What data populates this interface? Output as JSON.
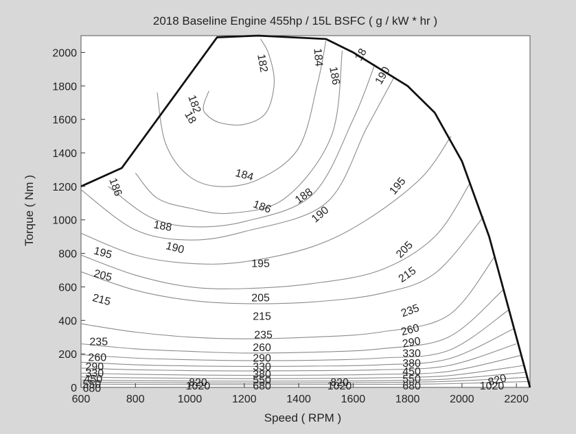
{
  "chart_data": {
    "type": "contour",
    "title": "2018 Baseline Engine 455hp / 15L  BSFC ( g / kW * hr )",
    "xlabel": "Speed ( RPM )",
    "ylabel": "Torque ( Nm )",
    "xlim": [
      600,
      2250
    ],
    "ylim": [
      0,
      2100
    ],
    "xticks": [
      "600",
      "800",
      "1000",
      "1200",
      "1400",
      "1600",
      "1800",
      "2000",
      "2200"
    ],
    "yticks": [
      "0",
      "200",
      "400",
      "600",
      "800",
      "1000",
      "1200",
      "1400",
      "1600",
      "1800",
      "2000"
    ],
    "grid": false,
    "envelope": {
      "x": [
        600,
        750,
        1100,
        1250,
        1500,
        1600,
        1700,
        1800,
        1900,
        2000,
        2100,
        2250
      ],
      "y": [
        1200,
        1310,
        2090,
        2100,
        2080,
        2000,
        1900,
        1800,
        1640,
        1350,
        900,
        0
      ]
    },
    "contours": [
      {
        "level": 182,
        "x": [
          1070,
          1050,
          1060,
          1110,
          1200,
          1280,
          1310,
          1290,
          1260
        ],
        "y": [
          1770,
          1680,
          1630,
          1580,
          1570,
          1640,
          1820,
          1990,
          2080
        ]
      },
      {
        "level": 184,
        "x": [
          880,
          910,
          990,
          1100,
          1250,
          1400,
          1470,
          1500
        ],
        "y": [
          1760,
          1460,
          1270,
          1200,
          1240,
          1430,
          1820,
          2070
        ]
      },
      {
        "level": 186,
        "x": [
          800,
          880,
          1000,
          1150,
          1350,
          1520,
          1560
        ],
        "y": [
          1280,
          1130,
          1070,
          1040,
          1130,
          1500,
          2010
        ]
      },
      {
        "level": 188,
        "x": [
          700,
          850,
          1000,
          1200,
          1450,
          1600,
          1680
        ],
        "y": [
          1200,
          1020,
          960,
          990,
          1150,
          1600,
          1930
        ]
      },
      {
        "level": 190,
        "x": [
          600,
          800,
          1000,
          1200,
          1500,
          1650,
          1750
        ],
        "y": [
          1180,
          940,
          880,
          930,
          1100,
          1550,
          1850
        ]
      },
      {
        "level": 195,
        "x": [
          600,
          800,
          1000,
          1200,
          1450,
          1650,
          1850,
          1960
        ],
        "y": [
          920,
          790,
          740,
          750,
          840,
          1000,
          1250,
          1500
        ]
      },
      {
        "level": 205,
        "x": [
          600,
          800,
          1000,
          1200,
          1450,
          1700,
          1900,
          2030
        ],
        "y": [
          790,
          670,
          600,
          590,
          620,
          700,
          900,
          1220
        ]
      },
      {
        "level": 215,
        "x": [
          600,
          800,
          1000,
          1200,
          1450,
          1700,
          1900,
          2080
        ],
        "y": [
          690,
          580,
          520,
          500,
          510,
          560,
          680,
          1020
        ]
      },
      {
        "level": 235,
        "x": [
          600,
          800,
          1000,
          1200,
          1450,
          1700,
          1950,
          2120
        ],
        "y": [
          380,
          330,
          300,
          290,
          300,
          330,
          430,
          780
        ]
      },
      {
        "level": 260,
        "x": [
          600,
          800,
          1000,
          1200,
          1450,
          1700,
          1950,
          2150
        ],
        "y": [
          260,
          230,
          215,
          205,
          210,
          230,
          300,
          580
        ]
      },
      {
        "level": 290,
        "x": [
          600,
          800,
          1000,
          1200,
          1450,
          1700,
          1950,
          2170
        ],
        "y": [
          195,
          175,
          165,
          160,
          162,
          175,
          220,
          460
        ]
      },
      {
        "level": 330,
        "x": [
          600,
          800,
          1000,
          1200,
          1450,
          1700,
          1950,
          2190
        ],
        "y": [
          150,
          135,
          128,
          125,
          127,
          135,
          170,
          350
        ]
      },
      {
        "level": 380,
        "x": [
          600,
          800,
          1000,
          1200,
          1450,
          1700,
          1950,
          2200
        ],
        "y": [
          115,
          105,
          100,
          98,
          100,
          105,
          130,
          260
        ]
      },
      {
        "level": 450,
        "x": [
          600,
          800,
          1000,
          1200,
          1450,
          1700,
          1950,
          2215
        ],
        "y": [
          85,
          78,
          74,
          72,
          73,
          78,
          95,
          190
        ]
      },
      {
        "level": 550,
        "x": [
          600,
          800,
          1000,
          1200,
          1450,
          1700,
          1950,
          2225
        ],
        "y": [
          62,
          57,
          54,
          52,
          53,
          57,
          70,
          130
        ]
      },
      {
        "level": 680,
        "x": [
          600,
          800,
          1000,
          1200,
          1450,
          1700,
          1950,
          2235
        ],
        "y": [
          44,
          40,
          38,
          37,
          38,
          40,
          50,
          90
        ]
      },
      {
        "level": 820,
        "x": [
          600,
          800,
          1000,
          1200,
          1450,
          1700,
          1950,
          2240
        ],
        "y": [
          32,
          29,
          27,
          26,
          27,
          29,
          36,
          60
        ]
      },
      {
        "level": 1020,
        "x": [
          600,
          800,
          1000,
          1200,
          1450,
          1700,
          1950,
          2245
        ],
        "y": [
          20,
          18,
          17,
          16,
          17,
          18,
          22,
          35
        ]
      }
    ],
    "contour_labels": [
      {
        "text": "182",
        "x": 1265,
        "y": 1935,
        "angle": 80
      },
      {
        "text": "184",
        "x": 1470,
        "y": 1970,
        "angle": 85
      },
      {
        "text": "186",
        "x": 1530,
        "y": 1860,
        "angle": 80
      },
      {
        "text": "18",
        "x": 1630,
        "y": 1985,
        "angle": -60
      },
      {
        "text": "190",
        "x": 1710,
        "y": 1860,
        "angle": -60
      },
      {
        "text": "182",
        "x": 1015,
        "y": 1690,
        "angle": 70
      },
      {
        "text": "18",
        "x": 1000,
        "y": 1610,
        "angle": 60
      },
      {
        "text": "186",
        "x": 725,
        "y": 1195,
        "angle": 70
      },
      {
        "text": "184",
        "x": 1200,
        "y": 1265,
        "angle": 15
      },
      {
        "text": "186",
        "x": 1265,
        "y": 1075,
        "angle": 20
      },
      {
        "text": "188",
        "x": 1420,
        "y": 1140,
        "angle": -35
      },
      {
        "text": "190",
        "x": 1480,
        "y": 1030,
        "angle": -40
      },
      {
        "text": "195",
        "x": 1765,
        "y": 1200,
        "angle": -50
      },
      {
        "text": "188",
        "x": 900,
        "y": 960,
        "angle": 10
      },
      {
        "text": "190",
        "x": 945,
        "y": 830,
        "angle": 15
      },
      {
        "text": "195",
        "x": 680,
        "y": 800,
        "angle": 15
      },
      {
        "text": "195",
        "x": 1260,
        "y": 735,
        "angle": 0
      },
      {
        "text": "205",
        "x": 1790,
        "y": 820,
        "angle": -45
      },
      {
        "text": "205",
        "x": 680,
        "y": 665,
        "angle": 15
      },
      {
        "text": "215",
        "x": 1800,
        "y": 670,
        "angle": -35
      },
      {
        "text": "205",
        "x": 1260,
        "y": 530,
        "angle": 0
      },
      {
        "text": "215",
        "x": 675,
        "y": 520,
        "angle": 15
      },
      {
        "text": "235",
        "x": 1810,
        "y": 455,
        "angle": -20
      },
      {
        "text": "215",
        "x": 1265,
        "y": 420,
        "angle": 0
      },
      {
        "text": "260",
        "x": 1810,
        "y": 340,
        "angle": -15
      },
      {
        "text": "235",
        "x": 1270,
        "y": 310,
        "angle": 0
      },
      {
        "text": "290",
        "x": 1815,
        "y": 265,
        "angle": -10
      },
      {
        "text": "235",
        "x": 665,
        "y": 270,
        "angle": 0
      },
      {
        "text": "260",
        "x": 1265,
        "y": 235,
        "angle": 0
      },
      {
        "text": "330",
        "x": 1815,
        "y": 200,
        "angle": 0
      },
      {
        "text": "260",
        "x": 660,
        "y": 175,
        "angle": 0
      },
      {
        "text": "290",
        "x": 1265,
        "y": 170,
        "angle": 0
      },
      {
        "text": "380",
        "x": 1815,
        "y": 140,
        "angle": 0
      },
      {
        "text": "290",
        "x": 650,
        "y": 120,
        "angle": 0
      },
      {
        "text": "330",
        "x": 1265,
        "y": 120,
        "angle": 0
      },
      {
        "text": "450",
        "x": 1815,
        "y": 90,
        "angle": 0
      },
      {
        "text": "330",
        "x": 650,
        "y": 80,
        "angle": 0
      },
      {
        "text": "380",
        "x": 1265,
        "y": 75,
        "angle": 0
      },
      {
        "text": "550",
        "x": 1815,
        "y": 45,
        "angle": 0
      },
      {
        "text": "450",
        "x": 645,
        "y": 45,
        "angle": 0
      },
      {
        "text": "550",
        "x": 1265,
        "y": 40,
        "angle": 0
      },
      {
        "text": "680",
        "x": 1815,
        "y": 5,
        "angle": 0
      },
      {
        "text": "550",
        "x": 640,
        "y": 15,
        "angle": 0
      },
      {
        "text": "680",
        "x": 1265,
        "y": 5,
        "angle": 0
      },
      {
        "text": "820",
        "x": 2130,
        "y": 40,
        "angle": -15
      },
      {
        "text": "1020",
        "x": 2110,
        "y": 5,
        "angle": 0
      },
      {
        "text": "1020",
        "x": 1550,
        "y": 5,
        "angle": 0
      },
      {
        "text": "820",
        "x": 1550,
        "y": 25,
        "angle": 0
      },
      {
        "text": "1020",
        "x": 1030,
        "y": 5,
        "angle": 0
      },
      {
        "text": "820",
        "x": 1030,
        "y": 25,
        "angle": 0
      },
      {
        "text": "680",
        "x": 640,
        "y": -10,
        "angle": 0
      }
    ]
  }
}
